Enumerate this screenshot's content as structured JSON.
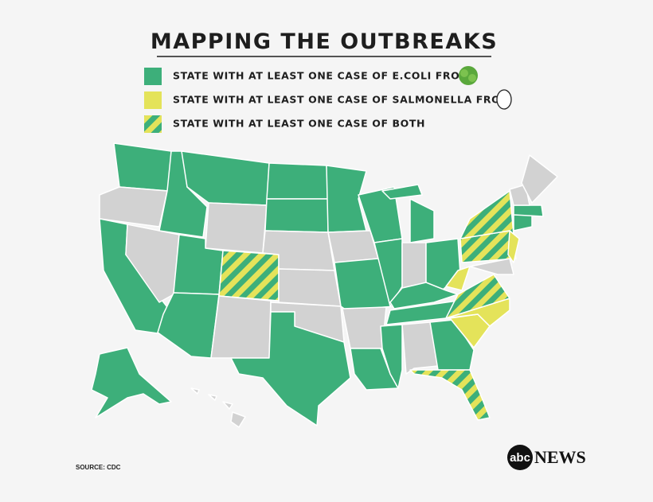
{
  "header": {
    "title": "MAPPING THE OUTBREAKS"
  },
  "legend": [
    {
      "label": "STATE WITH AT LEAST ONE CASE OF E.COLI FROM"
    },
    {
      "label": "STATE WITH AT LEAST ONE CASE OF SALMONELLA FROM"
    },
    {
      "label": "STATE WITH AT LEAST ONE CASE OF BOTH"
    }
  ],
  "footer": {
    "source": "SOURCE: CDC",
    "logo_mark": "abc",
    "logo_text": "NEWS"
  }
}
